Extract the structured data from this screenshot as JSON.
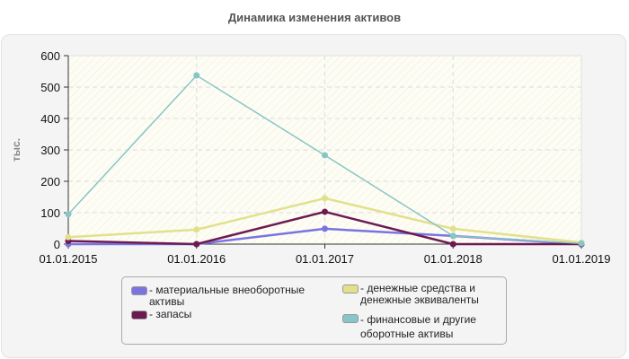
{
  "chart_data": {
    "type": "line",
    "title": "Динамика изменения активов",
    "xlabel": "",
    "ylabel": "тыс.",
    "ylim": [
      0,
      600
    ],
    "yticks": [
      0,
      100,
      200,
      300,
      400,
      500,
      600
    ],
    "grid": true,
    "legend_position": "bottom",
    "categories": [
      "01.01.2015",
      "01.01.2016",
      "01.01.2017",
      "01.01.2018",
      "01.01.2019"
    ],
    "series": [
      {
        "name": "материальные внеоборотные активы",
        "color": "#7b74e0",
        "values": [
          0,
          0,
          49,
          26,
          0
        ]
      },
      {
        "name": "запасы",
        "color": "#6e1a52",
        "values": [
          10,
          0,
          103,
          0,
          0
        ]
      },
      {
        "name": "денежные средства и денежные эквиваленты",
        "color": "#e3e08c",
        "values": [
          22,
          46,
          146,
          49,
          5
        ]
      },
      {
        "name": "финансовые и другие оборотные активы",
        "color": "#88c5c6",
        "values": [
          95,
          537,
          283,
          26,
          2
        ]
      }
    ]
  },
  "title": "Динамика изменения активов",
  "legend": [
    {
      "label": "- материальные внеоборотные\nактивы",
      "color": "#7b74e0"
    },
    {
      "label": "- запасы",
      "color": "#6e1a52"
    },
    {
      "label": "- денежные средства и\nденежные эквиваленты",
      "color": "#e3e08c"
    },
    {
      "label": "- финансовые и другие\nоборотные активы",
      "color": "#88c5c6"
    }
  ]
}
